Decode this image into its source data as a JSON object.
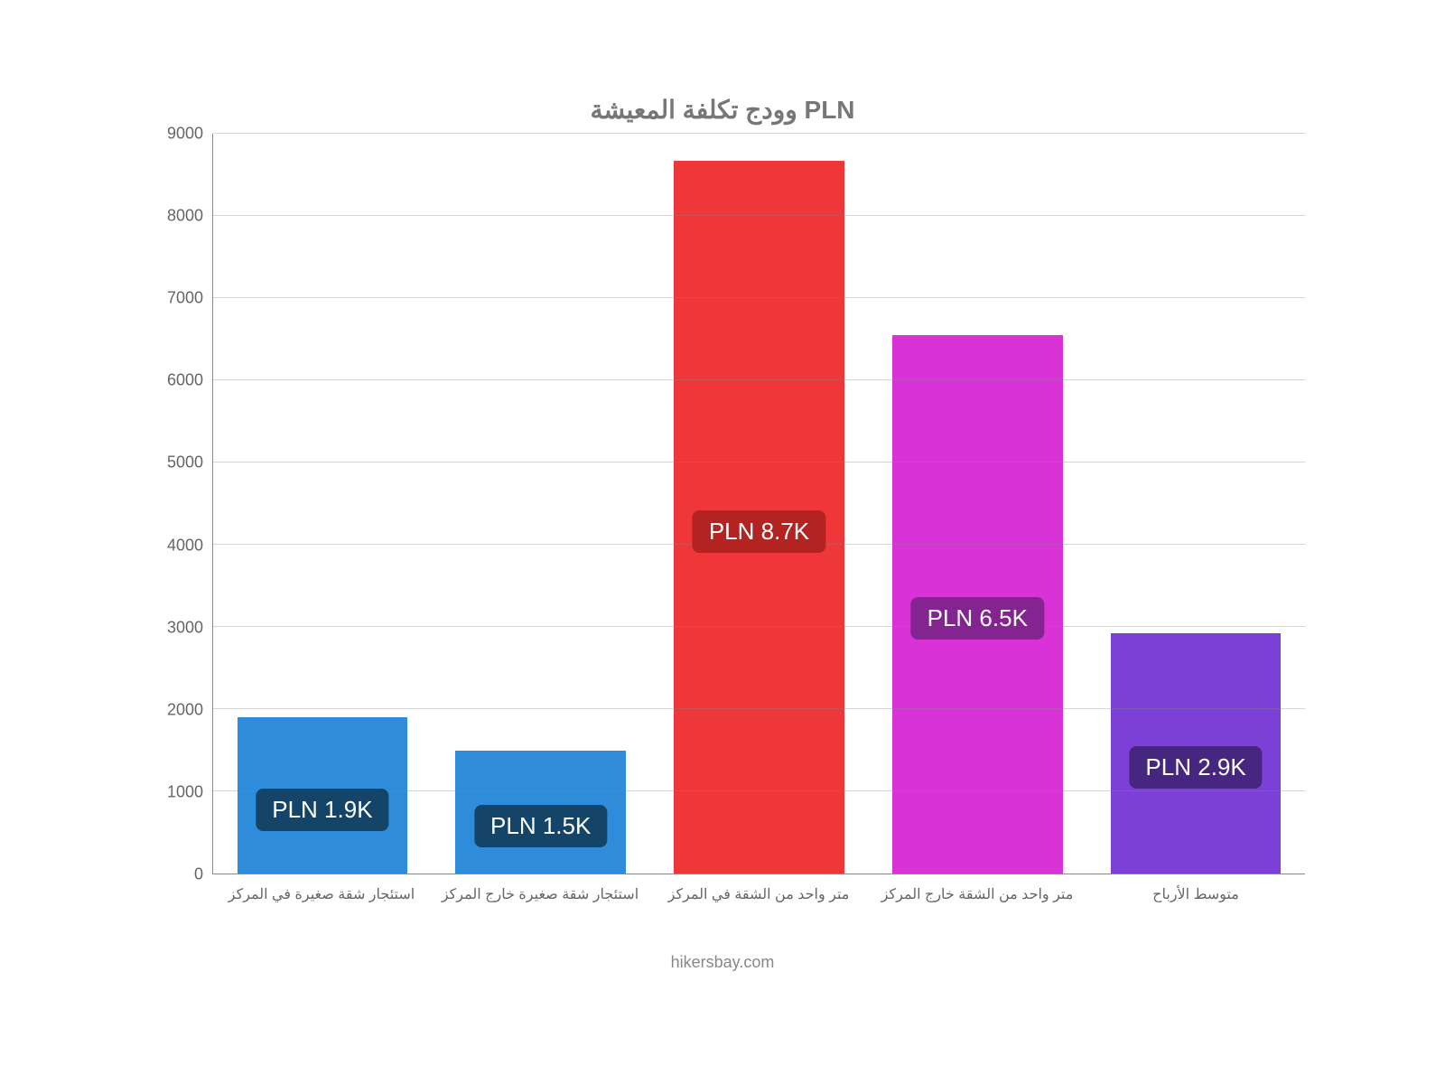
{
  "chart": {
    "type": "bar",
    "title": "وودج تكلفة المعيشة PLN",
    "title_fontsize": 28,
    "title_color": "#777777",
    "background_color": "#ffffff",
    "axis_color": "#888888",
    "grid_color": "#888888",
    "label_color": "#666666",
    "y": {
      "min": 0,
      "max": 9000,
      "step": 1000
    },
    "bar_width": 0.78,
    "categories": [
      "استئجار شقة صغيرة في المركز",
      "استئجار شقة صغيرة خارج المركز",
      "متر واحد من الشقة في المركز",
      "متر واحد من الشقة خارج المركز",
      "متوسط الأرباح"
    ],
    "values": [
      1900,
      1500,
      8670,
      6550,
      2920
    ],
    "bar_colors": [
      "#2f8cda",
      "#2f8cda",
      "#ef3639",
      "#d932d7",
      "#7c40d6"
    ],
    "badge_labels": [
      "PLN 1.9K",
      "PLN 1.5K",
      "PLN 8.7K",
      "PLN 6.5K",
      "PLN 2.9K"
    ],
    "badge_colors": [
      "#144569",
      "#144569",
      "#b32321",
      "#832490",
      "#472680"
    ],
    "badge_text_color": "#ffffff",
    "badge_fontsize": 26,
    "footer": "hikersbay.com"
  }
}
